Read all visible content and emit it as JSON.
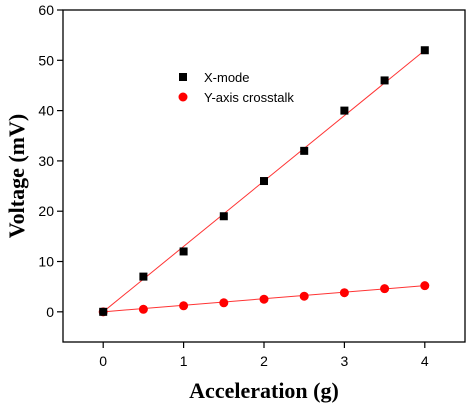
{
  "chart_data": {
    "type": "scatter",
    "xlabel": "Acceleration (g)",
    "ylabel": "Voltage (mV)",
    "xlim": [
      -0.5,
      4.5
    ],
    "ylim": [
      -6,
      60
    ],
    "xticks": [
      0,
      1,
      2,
      3,
      4
    ],
    "yticks": [
      0,
      10,
      20,
      30,
      40,
      50,
      60
    ],
    "grid": false,
    "legend": "top-center",
    "series": [
      {
        "name": "X-mode",
        "marker": "square",
        "color": "#000000",
        "fit_color": "#ff3333",
        "x": [
          0,
          0.5,
          1,
          1.5,
          2,
          2.5,
          3,
          3.5,
          4
        ],
        "y": [
          0,
          7,
          12,
          19,
          26,
          32,
          40,
          46,
          52
        ],
        "fit": [
          [
            0,
            0
          ],
          [
            4,
            52
          ]
        ]
      },
      {
        "name": "Y-axis crosstalk",
        "marker": "circle",
        "color": "#ff0000",
        "fit_color": "#ff3333",
        "x": [
          0,
          0.5,
          1,
          1.5,
          2,
          2.5,
          3,
          3.5,
          4
        ],
        "y": [
          0,
          0.5,
          1.2,
          1.8,
          2.5,
          3.1,
          3.8,
          4.6,
          5.2
        ],
        "fit": [
          [
            0,
            0
          ],
          [
            4,
            5.2
          ]
        ]
      }
    ]
  }
}
